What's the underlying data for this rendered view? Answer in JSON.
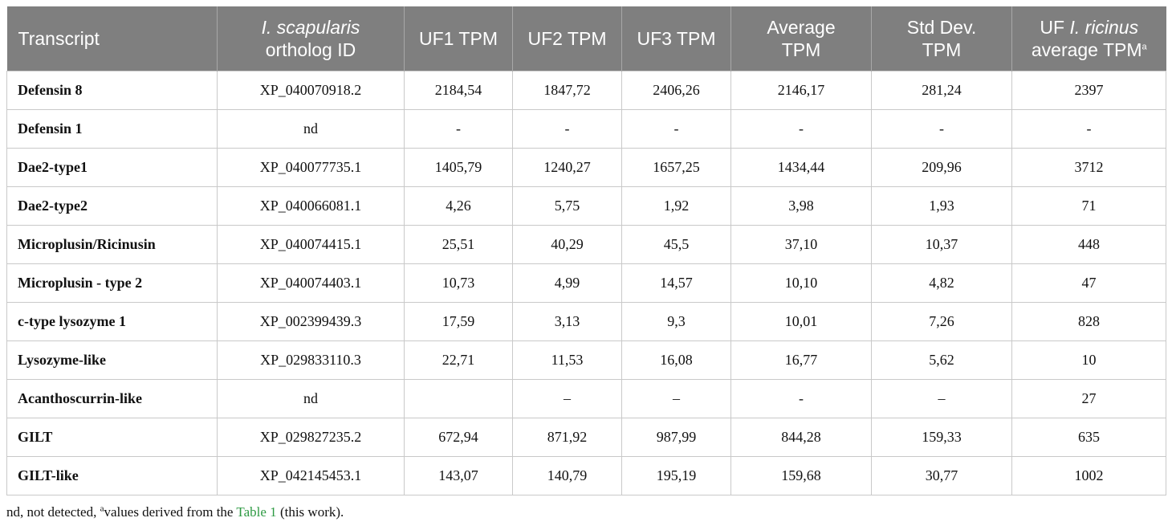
{
  "headers": {
    "transcript": "Transcript",
    "ortholog_italic": "I. scapularis",
    "ortholog_rest": "ortholog ID",
    "uf1": "UF1 TPM",
    "uf2": "UF2 TPM",
    "uf3": "UF3 TPM",
    "avg_line1": "Average",
    "avg_line2": "TPM",
    "sd_line1": "Std Dev.",
    "sd_line2": "TPM",
    "ric_pre": "UF ",
    "ric_italic": "I. ricinus",
    "ric_line2": "average TPM",
    "ric_sup": "a"
  },
  "rows": [
    {
      "transcript": "Defensin 8",
      "ortholog": "XP_040070918.2",
      "uf1": "2184,54",
      "uf2": "1847,72",
      "uf3": "2406,26",
      "avg": "2146,17",
      "sd": "281,24",
      "ricinus": "2397"
    },
    {
      "transcript": "Defensin 1",
      "ortholog": "nd",
      "uf1": "-",
      "uf2": "-",
      "uf3": "-",
      "avg": "-",
      "sd": "-",
      "ricinus": "-"
    },
    {
      "transcript": "Dae2-type1",
      "ortholog": "XP_040077735.1",
      "uf1": "1405,79",
      "uf2": "1240,27",
      "uf3": "1657,25",
      "avg": "1434,44",
      "sd": "209,96",
      "ricinus": "3712"
    },
    {
      "transcript": "Dae2-type2",
      "ortholog": "XP_040066081.1",
      "uf1": "4,26",
      "uf2": "5,75",
      "uf3": "1,92",
      "avg": "3,98",
      "sd": "1,93",
      "ricinus": "71"
    },
    {
      "transcript": "Microplusin/Ricinusin",
      "ortholog": "XP_040074415.1",
      "uf1": "25,51",
      "uf2": "40,29",
      "uf3": "45,5",
      "avg": "37,10",
      "sd": "10,37",
      "ricinus": "448"
    },
    {
      "transcript": "Microplusin - type 2",
      "ortholog": "XP_040074403.1",
      "uf1": "10,73",
      "uf2": "4,99",
      "uf3": "14,57",
      "avg": "10,10",
      "sd": "4,82",
      "ricinus": "47"
    },
    {
      "transcript": "c-type lysozyme 1",
      "ortholog": "XP_002399439.3",
      "uf1": "17,59",
      "uf2": "3,13",
      "uf3": "9,3",
      "avg": "10,01",
      "sd": "7,26",
      "ricinus": "828"
    },
    {
      "transcript": "Lysozyme-like",
      "ortholog": "XP_029833110.3",
      "uf1": "22,71",
      "uf2": "11,53",
      "uf3": "16,08",
      "avg": "16,77",
      "sd": "5,62",
      "ricinus": "10"
    },
    {
      "transcript": "Acanthoscurrin-like",
      "ortholog": "nd",
      "uf1": "",
      "uf2": "–",
      "uf3": "–",
      "avg": "-",
      "sd": "–",
      "ricinus": "27"
    },
    {
      "transcript": "GILT",
      "ortholog": "XP_029827235.2",
      "uf1": "672,94",
      "uf2": "871,92",
      "uf3": "987,99",
      "avg": "844,28",
      "sd": "159,33",
      "ricinus": "635"
    },
    {
      "transcript": "GILT-like",
      "ortholog": "XP_042145453.1",
      "uf1": "143,07",
      "uf2": "140,79",
      "uf3": "195,19",
      "avg": "159,68",
      "sd": "30,77",
      "ricinus": "1002"
    }
  ],
  "footnote": {
    "prefix": "nd, not detected, ",
    "sup": "a",
    "middle": "values derived from the ",
    "link": "Table 1",
    "suffix": " (this work)."
  }
}
